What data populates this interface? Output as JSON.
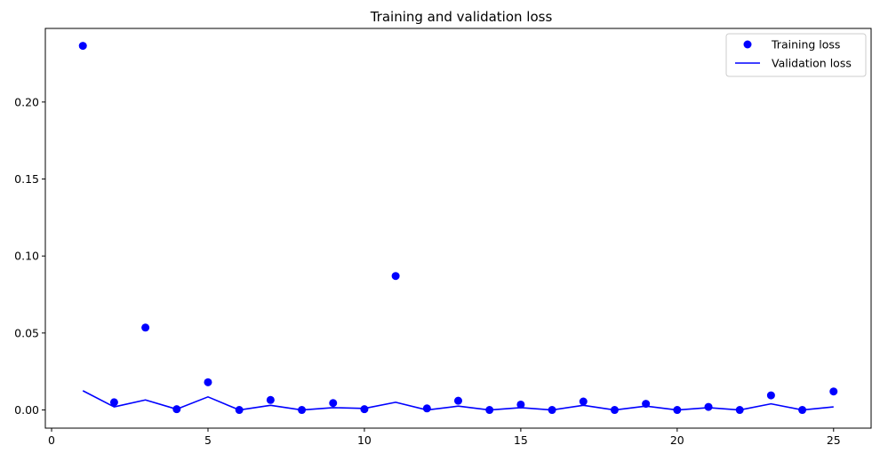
{
  "chart_data": {
    "type": "line",
    "title": "Training and validation loss",
    "xlabel": "",
    "ylabel": "",
    "xlim": [
      -0.2,
      26.2
    ],
    "ylim": [
      -0.0118,
      0.2478
    ],
    "x_ticks": [
      0,
      5,
      10,
      15,
      20,
      25
    ],
    "y_ticks": [
      0.0,
      0.05,
      0.1,
      0.15,
      0.2
    ],
    "y_tick_labels": [
      "0.00",
      "0.05",
      "0.10",
      "0.15",
      "0.20"
    ],
    "grid": false,
    "legend_position": "upper-right",
    "series": [
      {
        "name": "Training loss",
        "style": "markers",
        "color": "#0000ff",
        "x": [
          1,
          2,
          3,
          4,
          5,
          6,
          7,
          8,
          9,
          10,
          11,
          12,
          13,
          14,
          15,
          16,
          17,
          18,
          19,
          20,
          21,
          22,
          23,
          24,
          25
        ],
        "y": [
          0.2365,
          0.005,
          0.0535,
          0.0005,
          0.018,
          0.0,
          0.0065,
          0.0,
          0.0045,
          0.0005,
          0.087,
          0.001,
          0.006,
          0.0,
          0.0035,
          0.0,
          0.0055,
          0.0,
          0.004,
          0.0,
          0.002,
          0.0,
          0.0095,
          0.0,
          0.012
        ]
      },
      {
        "name": "Validation loss",
        "style": "line",
        "color": "#0000ff",
        "x": [
          1,
          2,
          3,
          4,
          5,
          6,
          7,
          8,
          9,
          10,
          11,
          12,
          13,
          14,
          15,
          16,
          17,
          18,
          19,
          20,
          21,
          22,
          23,
          24,
          25
        ],
        "y": [
          0.0125,
          0.002,
          0.0065,
          0.0005,
          0.0085,
          0.0,
          0.003,
          0.0,
          0.0015,
          0.001,
          0.005,
          0.0,
          0.0025,
          0.0,
          0.0015,
          0.0,
          0.003,
          0.0,
          0.0025,
          0.0,
          0.0015,
          0.0,
          0.004,
          0.0,
          0.002
        ]
      }
    ]
  }
}
